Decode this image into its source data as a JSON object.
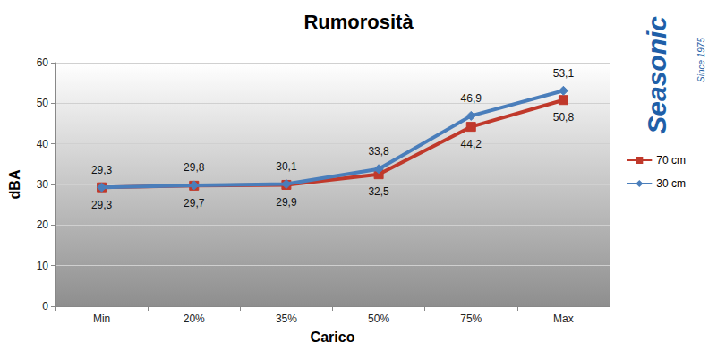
{
  "chart_data": {
    "type": "line",
    "title": "Rumorosità",
    "x_label": "Carico",
    "y_label": "dBA",
    "categories": [
      "Min",
      "20%",
      "35%",
      "50%",
      "75%",
      "Max"
    ],
    "series": [
      {
        "name": "70 cm",
        "color": "#c0392b",
        "marker": "square",
        "line_style": "solid",
        "values": [
          29.3,
          29.7,
          29.9,
          32.5,
          44.2,
          50.8
        ],
        "value_labels": [
          "29,3",
          "29,7",
          "29,9",
          "32,5",
          "44,2",
          "50,8"
        ]
      },
      {
        "name": "30 cm",
        "color": "#4a7ebb",
        "marker": "diamond",
        "line_style": "solid",
        "values": [
          29.3,
          29.8,
          30.1,
          33.8,
          46.9,
          53.1
        ],
        "value_labels": [
          "29,3",
          "29,8",
          "30,1",
          "33,8",
          "46,9",
          "53,1"
        ]
      }
    ],
    "ylim": [
      0,
      60
    ],
    "yticks": [
      0,
      10,
      20,
      30,
      40,
      50,
      60
    ],
    "grid": true,
    "legend": "right",
    "data_labels": true,
    "annotations": [
      "Seasonic",
      "Since 1975"
    ]
  }
}
